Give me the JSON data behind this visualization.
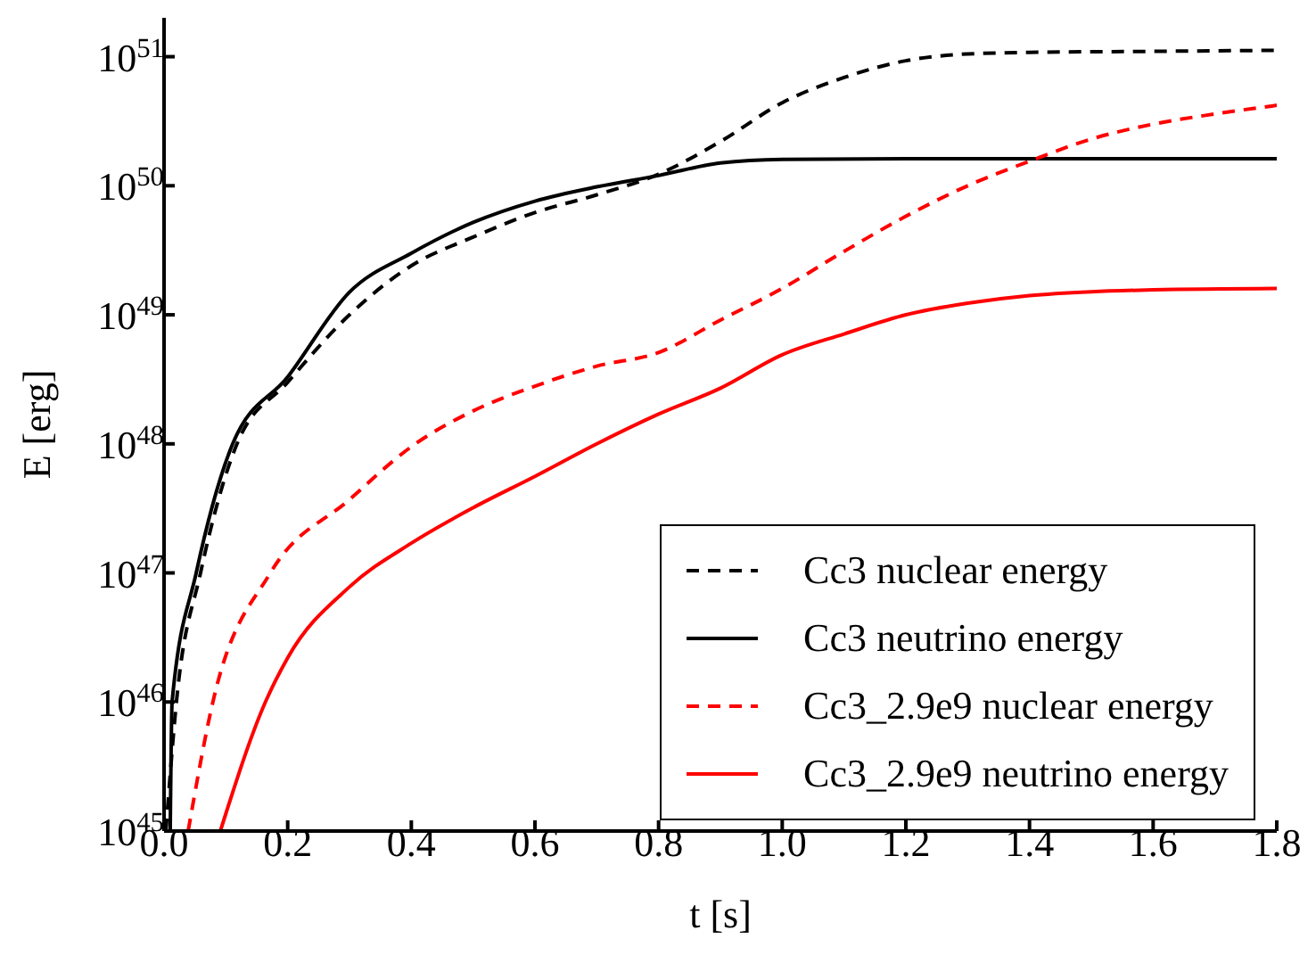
{
  "chart_data": {
    "type": "line",
    "xlabel": "t [s]",
    "ylabel": "E [erg]",
    "log": "y",
    "grid": false,
    "legend": "bottom right",
    "xlim": [
      0,
      1.8
    ],
    "xticks": [
      {
        "value": 0,
        "label": "0.0"
      },
      0.2,
      0.4,
      0.6,
      0.8,
      {
        "value": 1,
        "label": "1.0"
      },
      1.2,
      1.4,
      1.6,
      1.8
    ],
    "ylim": [
      1e+45,
      2e+51
    ],
    "yticks": [
      {
        "value": 1e+45,
        "label": "10$^{45}$"
      },
      {
        "value": 1e+46,
        "label": "10$^{46}$"
      },
      {
        "value": 1e+47,
        "label": "10$^{47}$"
      },
      {
        "value": 1e+48,
        "label": "10$^{48}$"
      },
      {
        "value": 1e+49,
        "label": "10$^{49}$"
      },
      {
        "value": 1e+50,
        "label": "10$^{50}$"
      },
      {
        "value": 1e+51,
        "label": "10$^{51}$"
      }
    ],
    "series": [
      {
        "name": "Cc3 nuclear energy",
        "color": "#000000",
        "line_style": "dashed",
        "x": [
          0.003,
          0.02,
          0.059,
          0.118,
          0.2,
          0.3,
          0.4,
          0.5,
          0.6,
          0.7,
          0.8,
          0.9,
          1.0,
          1.1,
          1.2,
          1.3,
          1.4,
          1.6,
          1.8
        ],
        "values": [
          1e+45,
          1e+46,
          1e+47,
          1e+48,
          3e+48,
          1e+49,
          2.4e+49,
          4e+49,
          6.2e+49,
          8.5e+49,
          1.23e+50,
          2.2e+50,
          4.4e+50,
          6.9e+50,
          9.3e+50,
          1.05e+51,
          1.08e+51,
          1.1e+51,
          1.12e+51
        ]
      },
      {
        "name": "Cc3 neutrino energy",
        "color": "#000000",
        "line_style": "solid",
        "x": [
          0.01,
          0.013,
          0.052,
          0.111,
          0.2,
          0.3,
          0.4,
          0.5,
          0.6,
          0.7,
          0.8,
          0.9,
          1.0,
          1.2,
          1.4,
          1.6,
          1.8
        ],
        "values": [
          1e+45,
          1e+46,
          1e+47,
          1e+48,
          3.3e+48,
          1.5e+49,
          3e+49,
          5.2e+49,
          7.6e+49,
          9.8e+49,
          1.2e+50,
          1.5e+50,
          1.6e+50,
          1.62e+50,
          1.62e+50,
          1.62e+50,
          1.62e+50
        ]
      },
      {
        "name": "Cc3_2.9e9 nuclear energy",
        "color": "#ff0000",
        "line_style": "dashed",
        "x": [
          0.039,
          0.079,
          0.172,
          0.3,
          0.4,
          0.5,
          0.6,
          0.7,
          0.8,
          0.9,
          1.0,
          1.1,
          1.2,
          1.3,
          1.4,
          1.5,
          1.6,
          1.7,
          1.8
        ],
        "values": [
          1e+45,
          1e+46,
          1e+47,
          3.7e+47,
          9.5e+47,
          1.8e+48,
          2.8e+48,
          4e+48,
          5.1e+48,
          9.1e+48,
          1.6e+49,
          3.1e+49,
          5.8e+49,
          1e+50,
          1.55e+50,
          2.3e+50,
          3e+50,
          3.6e+50,
          4.2e+50
        ]
      },
      {
        "name": "Cc3_2.9e9 neutrino energy",
        "color": "#ff0000",
        "line_style": "solid",
        "x": [
          0.091,
          0.164,
          0.2,
          0.3,
          0.4,
          0.5,
          0.6,
          0.7,
          0.8,
          0.9,
          1.0,
          1.1,
          1.2,
          1.3,
          1.4,
          1.5,
          1.6,
          1.8
        ],
        "values": [
          1e+45,
          1e+46,
          2.2e+46,
          7.8e+46,
          1.7e+47,
          3.2e+47,
          5.6e+47,
          1e+48,
          1.7e+48,
          2.7e+48,
          4.9e+48,
          7.1e+48,
          1e+49,
          1.23e+49,
          1.41e+49,
          1.51e+49,
          1.56e+49,
          1.6e+49
        ]
      }
    ]
  }
}
